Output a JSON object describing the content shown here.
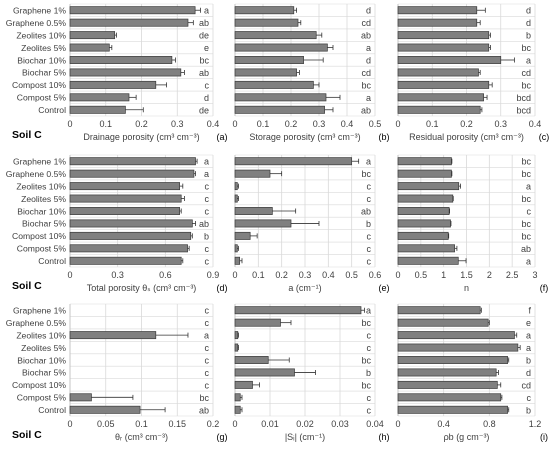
{
  "row_label": "Soil C",
  "treatments": [
    "Graphene 1%",
    "Graphene 0.5%",
    "Zeolites 10%",
    "Zeolites 5%",
    "Biochar 10%",
    "Biochar 5%",
    "Compost 10%",
    "Compost 5%",
    "Control"
  ],
  "colors": {
    "bar_fill": "#808080",
    "bar_stroke": "#3a3a3a",
    "grid": "#d9d9d9",
    "text": "#404040",
    "row_label": "#000000"
  },
  "chart_data": [
    {
      "panel": "(a)",
      "type": "bar",
      "orientation": "horizontal",
      "xlabel": "Drainage porosity (cm³ cm⁻³)",
      "xlim": [
        0,
        0.4
      ],
      "ticks": [
        "0",
        "0.1",
        "0.2",
        "0.3",
        "0.4"
      ],
      "values": [
        0.35,
        0.33,
        0.125,
        0.11,
        0.285,
        0.31,
        0.24,
        0.165,
        0.155
      ],
      "errors": [
        0.015,
        0.015,
        0.005,
        0.007,
        0.01,
        0.01,
        0.03,
        0.02,
        0.05
      ],
      "letters": [
        "a",
        "ab",
        "de",
        "e",
        "bc",
        "ab",
        "c",
        "d",
        "de"
      ]
    },
    {
      "panel": "(b)",
      "type": "bar",
      "orientation": "horizontal",
      "xlabel": "Storage porosity (cm³ cm⁻³)",
      "xlim": [
        0,
        0.5
      ],
      "ticks": [
        "0",
        "0.1",
        "0.2",
        "0.3",
        "0.4",
        "0.5"
      ],
      "values": [
        0.21,
        0.225,
        0.29,
        0.33,
        0.245,
        0.22,
        0.28,
        0.325,
        0.32
      ],
      "errors": [
        0.01,
        0.01,
        0.02,
        0.02,
        0.07,
        0.01,
        0.02,
        0.05,
        0.03
      ],
      "letters": [
        "d",
        "cd",
        "ab",
        "a",
        "d",
        "cd",
        "bc",
        "a",
        "ab"
      ]
    },
    {
      "panel": "(c)",
      "type": "bar",
      "orientation": "horizontal",
      "xlabel": "Residual porosity (cm³ cm⁻³)",
      "xlim": [
        0,
        0.4
      ],
      "ticks": [
        "0",
        "0.1",
        "0.2",
        "0.3",
        "0.4"
      ],
      "values": [
        0.23,
        0.23,
        0.265,
        0.265,
        0.3,
        0.235,
        0.265,
        0.25,
        0.24
      ],
      "errors": [
        0.025,
        0.01,
        0.005,
        0.005,
        0.04,
        0.005,
        0.01,
        0.01,
        0.005
      ],
      "letters": [
        "d",
        "d",
        "b",
        "bc",
        "a",
        "cd",
        "bc",
        "bcd",
        "bcd"
      ]
    },
    {
      "panel": "(d)",
      "type": "bar",
      "orientation": "horizontal",
      "xlabel": "Total porosity θₛ (cm³ cm⁻³)",
      "xlim": [
        0,
        0.9
      ],
      "ticks": [
        "0",
        "0.3",
        "0.6",
        "0.9"
      ],
      "values": [
        0.79,
        0.78,
        0.69,
        0.7,
        0.69,
        0.77,
        0.76,
        0.74,
        0.7
      ],
      "errors": [
        0.01,
        0.01,
        0.02,
        0.02,
        0.01,
        0.02,
        0.01,
        0.01,
        0.01
      ],
      "letters": [
        "a",
        "a",
        "c",
        "c",
        "c",
        "ab",
        "b",
        "c",
        "c"
      ]
    },
    {
      "panel": "(e)",
      "type": "bar",
      "orientation": "horizontal",
      "xlabel": "a (cm⁻¹)",
      "xlim": [
        0,
        0.6
      ],
      "ticks": [
        "0",
        "0.1",
        "0.2",
        "0.3",
        "0.4",
        "0.5",
        "0.6"
      ],
      "values": [
        0.5,
        0.15,
        0.01,
        0.01,
        0.16,
        0.24,
        0.065,
        0.01,
        0.02
      ],
      "errors": [
        0.03,
        0.05,
        0.005,
        0.005,
        0.1,
        0.12,
        0.03,
        0.005,
        0.01
      ],
      "letters": [
        "a",
        "bc",
        "c",
        "c",
        "ab",
        "b",
        "c",
        "c",
        "c"
      ]
    },
    {
      "panel": "(f)",
      "type": "bar",
      "orientation": "horizontal",
      "xlabel": "n",
      "xlim": [
        0,
        3
      ],
      "ticks": [
        "0",
        "0.5",
        "1",
        "1.5",
        "2",
        "2.5",
        "3"
      ],
      "values": [
        1.17,
        1.17,
        1.33,
        1.2,
        1.12,
        1.15,
        1.1,
        1.24,
        1.32
      ],
      "errors": [
        0.01,
        0.01,
        0.04,
        0.01,
        0.01,
        0.01,
        0.01,
        0.05,
        0.17
      ],
      "letters": [
        "bc",
        "bc",
        "a",
        "bc",
        "c",
        "bc",
        "bc",
        "ab",
        "a"
      ]
    },
    {
      "panel": "(g)",
      "type": "bar",
      "orientation": "horizontal",
      "xlabel": "θᵣ (cm³ cm⁻³)",
      "xlim": [
        0,
        0.2
      ],
      "ticks": [
        "0",
        "0.05",
        "0.1",
        "0.15",
        "0.2"
      ],
      "values": [
        0,
        0,
        0.12,
        0,
        0,
        0,
        0,
        0.03,
        0.098
      ],
      "errors": [
        0,
        0,
        0.045,
        0,
        0,
        0,
        0,
        0.058,
        0.035
      ],
      "letters": [
        "c",
        "c",
        "a",
        "c",
        "c",
        "c",
        "c",
        "bc",
        "ab"
      ]
    },
    {
      "panel": "(h)",
      "type": "bar",
      "orientation": "horizontal",
      "xlabel": "|Sᵢ| (cm⁻¹)",
      "xlim": [
        0,
        0.04
      ],
      "ticks": [
        "0",
        "0.01",
        "0.02",
        "0.03",
        "0.04"
      ],
      "values": [
        0.036,
        0.013,
        0.0008,
        0.0008,
        0.0095,
        0.017,
        0.005,
        0.0015,
        0.0015
      ],
      "errors": [
        0.001,
        0.003,
        0.0002,
        0.0002,
        0.006,
        0.006,
        0.002,
        0.0005,
        0.0005
      ],
      "letters": [
        "a",
        "bc",
        "c",
        "c",
        "bc",
        "b",
        "bc",
        "c",
        "c"
      ]
    },
    {
      "panel": "(i)",
      "type": "bar",
      "orientation": "horizontal",
      "xlabel": "ρb (g cm⁻³)",
      "xlim": [
        0,
        1.2
      ],
      "ticks": [
        "0",
        "0.4",
        "0.8",
        "1.2"
      ],
      "values": [
        0.72,
        0.79,
        1.02,
        1.05,
        0.96,
        0.86,
        0.87,
        0.9,
        0.96
      ],
      "errors": [
        0.01,
        0.01,
        0.02,
        0.02,
        0.01,
        0.02,
        0.03,
        0.01,
        0.01
      ],
      "letters": [
        "f",
        "e",
        "a",
        "a",
        "b",
        "d",
        "cd",
        "c",
        "b"
      ]
    }
  ]
}
